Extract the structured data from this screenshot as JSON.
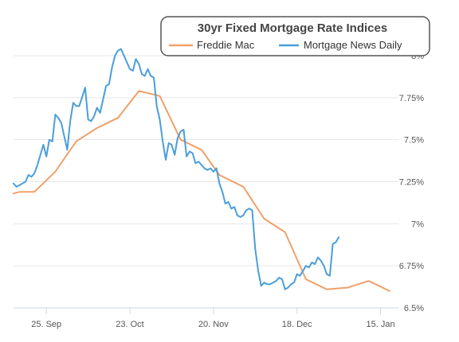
{
  "chart_data": {
    "type": "line",
    "title": "30yr Fixed Mortgage Rate Indices",
    "xlabel": "",
    "ylabel": "",
    "x_range": [
      "2023-09-14",
      "2024-01-21"
    ],
    "ylim": [
      6.5,
      8.0
    ],
    "y_ticks": [
      6.5,
      6.75,
      7.0,
      7.25,
      7.5,
      7.75,
      8.0
    ],
    "y_tick_labels": [
      "6.5%",
      "6.75%",
      "7%",
      "7.25%",
      "7.5%",
      "7.75%",
      "8%"
    ],
    "x_ticks": [
      "2023-09-25",
      "2023-10-23",
      "2023-11-20",
      "2023-12-18",
      "2024-01-15"
    ],
    "x_tick_labels": [
      "25. Sep",
      "23. Oct",
      "20. Nov",
      "18. Dec",
      "15. Jan"
    ],
    "grid": true,
    "legend_position": "top-right",
    "series": [
      {
        "name": "Freddie Mac",
        "color": "#f0a06a",
        "points": [
          [
            "2023-09-14",
            7.18
          ],
          [
            "2023-09-16",
            7.19
          ],
          [
            "2023-09-21",
            7.19
          ],
          [
            "2023-09-28",
            7.31
          ],
          [
            "2023-10-05",
            7.49
          ],
          [
            "2023-10-12",
            7.57
          ],
          [
            "2023-10-19",
            7.63
          ],
          [
            "2023-10-26",
            7.79
          ],
          [
            "2023-11-02",
            7.76
          ],
          [
            "2023-11-09",
            7.5
          ],
          [
            "2023-11-16",
            7.44
          ],
          [
            "2023-11-22",
            7.29
          ],
          [
            "2023-11-30",
            7.22
          ],
          [
            "2023-12-07",
            7.03
          ],
          [
            "2023-12-14",
            6.95
          ],
          [
            "2023-12-21",
            6.67
          ],
          [
            "2023-12-28",
            6.61
          ],
          [
            "2024-01-04",
            6.62
          ],
          [
            "2024-01-11",
            6.66
          ],
          [
            "2024-01-18",
            6.6
          ]
        ]
      },
      {
        "name": "Mortgage News Daily",
        "color": "#4a9edb",
        "points": [
          [
            "2023-09-14",
            7.24
          ],
          [
            "2023-09-15",
            7.22
          ],
          [
            "2023-09-16",
            7.23
          ],
          [
            "2023-09-18",
            7.25
          ],
          [
            "2023-09-19",
            7.29
          ],
          [
            "2023-09-20",
            7.28
          ],
          [
            "2023-09-21",
            7.3
          ],
          [
            "2023-09-22",
            7.35
          ],
          [
            "2023-09-24",
            7.47
          ],
          [
            "2023-09-25",
            7.4
          ],
          [
            "2023-09-26",
            7.5
          ],
          [
            "2023-09-27",
            7.49
          ],
          [
            "2023-09-28",
            7.65
          ],
          [
            "2023-09-29",
            7.63
          ],
          [
            "2023-09-30",
            7.6
          ],
          [
            "2023-10-02",
            7.44
          ],
          [
            "2023-10-03",
            7.61
          ],
          [
            "2023-10-04",
            7.72
          ],
          [
            "2023-10-05",
            7.7
          ],
          [
            "2023-10-06",
            7.7
          ],
          [
            "2023-10-08",
            7.81
          ],
          [
            "2023-10-09",
            7.62
          ],
          [
            "2023-10-10",
            7.61
          ],
          [
            "2023-10-11",
            7.64
          ],
          [
            "2023-10-12",
            7.69
          ],
          [
            "2023-10-13",
            7.66
          ],
          [
            "2023-10-15",
            7.82
          ],
          [
            "2023-10-16",
            7.83
          ],
          [
            "2023-10-17",
            7.93
          ],
          [
            "2023-10-18",
            8.0
          ],
          [
            "2023-10-19",
            8.03
          ],
          [
            "2023-10-20",
            8.04
          ],
          [
            "2023-10-22",
            7.96
          ],
          [
            "2023-10-23",
            7.92
          ],
          [
            "2023-10-24",
            7.91
          ],
          [
            "2023-10-25",
            7.98
          ],
          [
            "2023-10-26",
            7.95
          ],
          [
            "2023-10-27",
            7.89
          ],
          [
            "2023-10-28",
            7.88
          ],
          [
            "2023-10-29",
            7.92
          ],
          [
            "2023-10-30",
            7.88
          ],
          [
            "2023-10-31",
            7.87
          ],
          [
            "2023-11-01",
            7.7
          ],
          [
            "2023-11-02",
            7.62
          ],
          [
            "2023-11-03",
            7.49
          ],
          [
            "2023-11-04",
            7.38
          ],
          [
            "2023-11-05",
            7.48
          ],
          [
            "2023-11-06",
            7.47
          ],
          [
            "2023-11-07",
            7.41
          ],
          [
            "2023-11-08",
            7.51
          ],
          [
            "2023-11-09",
            7.55
          ],
          [
            "2023-11-10",
            7.56
          ],
          [
            "2023-11-11",
            7.4
          ],
          [
            "2023-11-12",
            7.43
          ],
          [
            "2023-11-13",
            7.42
          ],
          [
            "2023-11-14",
            7.36
          ],
          [
            "2023-11-15",
            7.37
          ],
          [
            "2023-11-16",
            7.35
          ],
          [
            "2023-11-17",
            7.33
          ],
          [
            "2023-11-18",
            7.32
          ],
          [
            "2023-11-19",
            7.33
          ],
          [
            "2023-11-20",
            7.31
          ],
          [
            "2023-11-21",
            7.33
          ],
          [
            "2023-11-22",
            7.24
          ],
          [
            "2023-11-23",
            7.19
          ],
          [
            "2023-11-24",
            7.12
          ],
          [
            "2023-11-25",
            7.13
          ],
          [
            "2023-11-26",
            7.09
          ],
          [
            "2023-11-27",
            7.1
          ],
          [
            "2023-11-28",
            7.05
          ],
          [
            "2023-11-29",
            7.04
          ],
          [
            "2023-11-30",
            7.05
          ],
          [
            "2023-12-01",
            7.08
          ],
          [
            "2023-12-02",
            7.09
          ],
          [
            "2023-12-03",
            7.08
          ],
          [
            "2023-12-04",
            6.85
          ],
          [
            "2023-12-05",
            6.72
          ],
          [
            "2023-12-06",
            6.63
          ],
          [
            "2023-12-07",
            6.65
          ],
          [
            "2023-12-08",
            6.64
          ],
          [
            "2023-12-09",
            6.64
          ],
          [
            "2023-12-10",
            6.65
          ],
          [
            "2023-12-11",
            6.66
          ],
          [
            "2023-12-12",
            6.68
          ],
          [
            "2023-12-13",
            6.67
          ],
          [
            "2023-12-14",
            6.61
          ],
          [
            "2023-12-15",
            6.62
          ],
          [
            "2023-12-16",
            6.64
          ],
          [
            "2023-12-17",
            6.65
          ],
          [
            "2023-12-18",
            6.7
          ],
          [
            "2023-12-19",
            6.69
          ],
          [
            "2023-12-20",
            6.72
          ],
          [
            "2023-12-21",
            6.75
          ],
          [
            "2023-12-22",
            6.74
          ],
          [
            "2023-12-23",
            6.77
          ],
          [
            "2023-12-24",
            6.76
          ],
          [
            "2023-12-25",
            6.8
          ],
          [
            "2023-12-26",
            6.78
          ],
          [
            "2023-12-27",
            6.75
          ],
          [
            "2023-12-28",
            6.7
          ],
          [
            "2023-12-29",
            6.69
          ],
          [
            "2023-12-30",
            6.88
          ],
          [
            "2023-12-31",
            6.89
          ],
          [
            "2024-01-01",
            6.92
          ]
        ]
      }
    ]
  }
}
